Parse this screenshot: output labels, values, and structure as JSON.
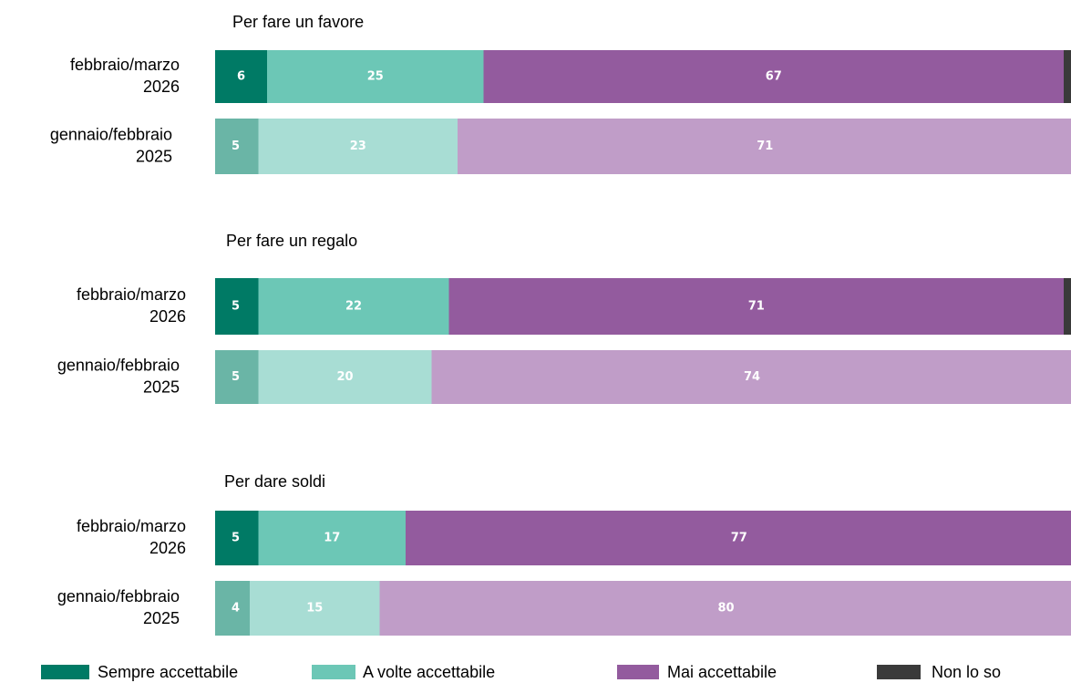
{
  "chart_data": {
    "type": "stacked-bar-horizontal",
    "xlim": [
      0,
      100
    ],
    "series": [
      {
        "name": "Sempre accettabile",
        "colors": [
          "#007a65",
          "#6ab5a6"
        ]
      },
      {
        "name": "A volte accettabile",
        "colors": [
          "#6cc7b6",
          "#a8ddd4"
        ]
      },
      {
        "name": "Mai accettabile",
        "colors": [
          "#935b9e",
          "#c09dc8"
        ]
      },
      {
        "name": "Non lo so",
        "colors": [
          "#3a3a3a",
          "#3a3a3a"
        ]
      }
    ],
    "panels": [
      {
        "title": "Per fare un favore",
        "categories": [
          [
            "febbraio/marzo",
            "2026"
          ],
          [
            "gennaio/febbraio",
            "2025"
          ]
        ],
        "values": [
          [
            6,
            5
          ],
          [
            25,
            23
          ],
          [
            67,
            71
          ],
          [
            2,
            1
          ]
        ]
      },
      {
        "title": "Per fare un regalo",
        "categories": [
          [
            "febbraio/marzo",
            "2026"
          ],
          [
            "gennaio/febbraio",
            "2025"
          ]
        ],
        "values": [
          [
            5,
            5
          ],
          [
            22,
            20
          ],
          [
            71,
            74
          ],
          [
            2,
            1
          ]
        ]
      },
      {
        "title": "Per dare soldi",
        "categories": [
          [
            "febbraio/marzo",
            "2026"
          ],
          [
            "gennaio/febbraio",
            "2025"
          ]
        ],
        "values": [
          [
            5,
            4
          ],
          [
            17,
            15
          ],
          [
            77,
            80
          ],
          [
            1,
            1
          ]
        ]
      }
    ]
  }
}
